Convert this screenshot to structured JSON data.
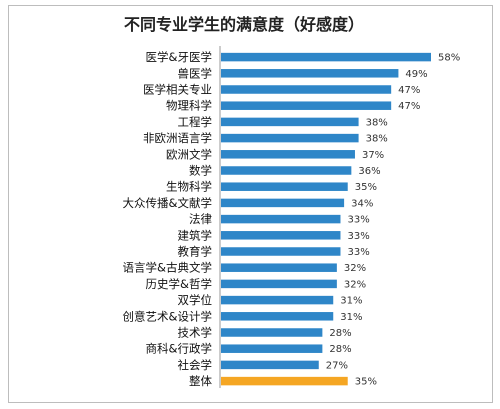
{
  "chart_data": {
    "type": "bar",
    "orientation": "horizontal",
    "title": "不同专业学生的满意度（好感度）",
    "categories": [
      "医学&牙医学",
      "兽医学",
      "医学相关专业",
      "物理科学",
      "工程学",
      "非欧洲语言学",
      "欧洲文学",
      "数学",
      "生物科学",
      "大众传播&文献学",
      "法律",
      "建筑学",
      "教育学",
      "语言学&古典文学",
      "历史学&哲学",
      "双学位",
      "创意艺术&设计学",
      "技术学",
      "商科&行政学",
      "社会学",
      "整体"
    ],
    "values": [
      58,
      49,
      47,
      47,
      38,
      38,
      37,
      36,
      35,
      34,
      33,
      33,
      33,
      32,
      32,
      31,
      31,
      28,
      28,
      27,
      35
    ],
    "value_labels": [
      "58%",
      "49%",
      "47%",
      "47%",
      "38%",
      "38%",
      "37%",
      "36%",
      "35%",
      "34%",
      "33%",
      "33%",
      "33%",
      "32%",
      "32%",
      "31%",
      "31%",
      "28%",
      "28%",
      "27%",
      "35%"
    ],
    "xlim": [
      0,
      58
    ],
    "grid": false,
    "legend": "none",
    "colors": {
      "bar": "#2e86c8",
      "highlight_bar": "#f5a623",
      "highlight_category": "整体"
    }
  }
}
